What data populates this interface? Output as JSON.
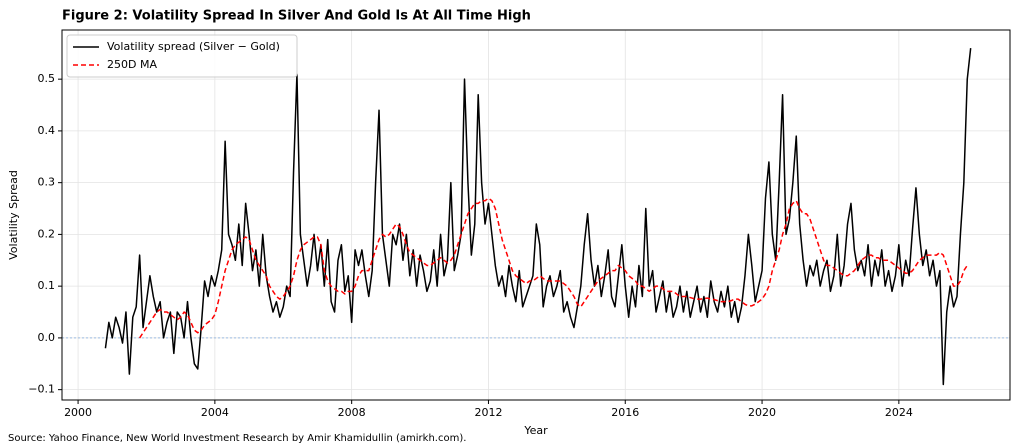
{
  "chart_data": {
    "type": "line",
    "title": "Figure 2: Volatility Spread In Silver And Gold Is At All Time High",
    "xlabel": "Year",
    "ylabel": "Volatility Spread",
    "source": "Source: Yahoo Finance, New World Investment Research by Amir Khamidullin (amirkh.com).",
    "x": [
      2000.8,
      2000.9,
      2001.0,
      2001.1,
      2001.2,
      2001.3,
      2001.4,
      2001.5,
      2001.6,
      2001.7,
      2001.8,
      2001.9,
      2002.0,
      2002.1,
      2002.2,
      2002.3,
      2002.4,
      2002.5,
      2002.6,
      2002.7,
      2002.8,
      2002.9,
      2003.0,
      2003.1,
      2003.2,
      2003.3,
      2003.4,
      2003.5,
      2003.6,
      2003.7,
      2003.8,
      2003.9,
      2004.0,
      2004.1,
      2004.2,
      2004.3,
      2004.4,
      2004.5,
      2004.6,
      2004.7,
      2004.8,
      2004.9,
      2005.0,
      2005.1,
      2005.2,
      2005.3,
      2005.4,
      2005.5,
      2005.6,
      2005.7,
      2005.8,
      2005.9,
      2006.0,
      2006.1,
      2006.2,
      2006.3,
      2006.4,
      2006.5,
      2006.6,
      2006.7,
      2006.8,
      2006.9,
      2007.0,
      2007.1,
      2007.2,
      2007.3,
      2007.4,
      2007.5,
      2007.6,
      2007.7,
      2007.8,
      2007.9,
      2008.0,
      2008.1,
      2008.2,
      2008.3,
      2008.4,
      2008.5,
      2008.6,
      2008.7,
      2008.8,
      2008.9,
      2009.0,
      2009.1,
      2009.2,
      2009.3,
      2009.4,
      2009.5,
      2009.6,
      2009.7,
      2009.8,
      2009.9,
      2010.0,
      2010.1,
      2010.2,
      2010.3,
      2010.4,
      2010.5,
      2010.6,
      2010.7,
      2010.8,
      2010.9,
      2011.0,
      2011.1,
      2011.2,
      2011.3,
      2011.4,
      2011.5,
      2011.6,
      2011.7,
      2011.8,
      2011.9,
      2012.0,
      2012.1,
      2012.2,
      2012.3,
      2012.4,
      2012.5,
      2012.6,
      2012.7,
      2012.8,
      2012.9,
      2013.0,
      2013.1,
      2013.2,
      2013.3,
      2013.4,
      2013.5,
      2013.6,
      2013.7,
      2013.8,
      2013.9,
      2014.0,
      2014.1,
      2014.2,
      2014.3,
      2014.4,
      2014.5,
      2014.6,
      2014.7,
      2014.8,
      2014.9,
      2015.0,
      2015.1,
      2015.2,
      2015.3,
      2015.4,
      2015.5,
      2015.6,
      2015.7,
      2015.8,
      2015.9,
      2016.0,
      2016.1,
      2016.2,
      2016.3,
      2016.4,
      2016.5,
      2016.6,
      2016.7,
      2016.8,
      2016.9,
      2017.0,
      2017.1,
      2017.2,
      2017.3,
      2017.4,
      2017.5,
      2017.6,
      2017.7,
      2017.8,
      2017.9,
      2018.0,
      2018.1,
      2018.2,
      2018.3,
      2018.4,
      2018.5,
      2018.6,
      2018.7,
      2018.8,
      2018.9,
      2019.0,
      2019.1,
      2019.2,
      2019.3,
      2019.4,
      2019.5,
      2019.6,
      2019.7,
      2019.8,
      2019.9,
      2020.0,
      2020.1,
      2020.2,
      2020.3,
      2020.4,
      2020.5,
      2020.6,
      2020.7,
      2020.8,
      2020.9,
      2021.0,
      2021.1,
      2021.2,
      2021.3,
      2021.4,
      2021.5,
      2021.6,
      2021.7,
      2021.8,
      2021.9,
      2022.0,
      2022.1,
      2022.2,
      2022.3,
      2022.4,
      2022.5,
      2022.6,
      2022.7,
      2022.8,
      2022.9,
      2023.0,
      2023.1,
      2023.2,
      2023.3,
      2023.4,
      2023.5,
      2023.6,
      2023.7,
      2023.8,
      2023.9,
      2024.0,
      2024.1,
      2024.2,
      2024.3,
      2024.4,
      2024.5,
      2024.6,
      2024.7,
      2024.8,
      2024.9,
      2025.0,
      2025.1,
      2025.2,
      2025.3,
      2025.4,
      2025.5,
      2025.6,
      2025.7,
      2025.8,
      2025.9,
      2026.0,
      2026.1
    ],
    "series": [
      {
        "name": "Volatility spread (Silver − Gold)",
        "color": "#000000",
        "dash": "solid",
        "values": [
          -0.02,
          0.03,
          0.0,
          0.04,
          0.02,
          -0.01,
          0.05,
          -0.07,
          0.04,
          0.06,
          0.16,
          0.02,
          0.07,
          0.12,
          0.08,
          0.05,
          0.07,
          0.0,
          0.03,
          0.05,
          -0.03,
          0.05,
          0.04,
          0.0,
          0.07,
          0.0,
          -0.05,
          -0.06,
          0.02,
          0.11,
          0.08,
          0.12,
          0.1,
          0.13,
          0.17,
          0.38,
          0.2,
          0.18,
          0.15,
          0.22,
          0.14,
          0.26,
          0.2,
          0.13,
          0.17,
          0.1,
          0.2,
          0.12,
          0.08,
          0.05,
          0.07,
          0.04,
          0.06,
          0.1,
          0.08,
          0.32,
          0.51,
          0.2,
          0.15,
          0.1,
          0.14,
          0.2,
          0.13,
          0.18,
          0.1,
          0.19,
          0.07,
          0.05,
          0.15,
          0.18,
          0.09,
          0.12,
          0.03,
          0.17,
          0.14,
          0.17,
          0.12,
          0.08,
          0.13,
          0.3,
          0.44,
          0.2,
          0.15,
          0.1,
          0.2,
          0.18,
          0.22,
          0.15,
          0.2,
          0.12,
          0.17,
          0.1,
          0.16,
          0.13,
          0.09,
          0.11,
          0.17,
          0.1,
          0.2,
          0.12,
          0.15,
          0.3,
          0.13,
          0.16,
          0.2,
          0.5,
          0.3,
          0.16,
          0.22,
          0.47,
          0.3,
          0.22,
          0.26,
          0.2,
          0.14,
          0.1,
          0.12,
          0.08,
          0.14,
          0.1,
          0.07,
          0.13,
          0.06,
          0.08,
          0.1,
          0.12,
          0.22,
          0.18,
          0.06,
          0.1,
          0.12,
          0.08,
          0.1,
          0.13,
          0.05,
          0.07,
          0.04,
          0.02,
          0.06,
          0.1,
          0.18,
          0.24,
          0.15,
          0.1,
          0.14,
          0.08,
          0.12,
          0.17,
          0.08,
          0.06,
          0.12,
          0.18,
          0.1,
          0.04,
          0.1,
          0.06,
          0.14,
          0.08,
          0.25,
          0.1,
          0.13,
          0.05,
          0.08,
          0.11,
          0.05,
          0.09,
          0.04,
          0.06,
          0.1,
          0.05,
          0.09,
          0.04,
          0.07,
          0.1,
          0.05,
          0.08,
          0.04,
          0.11,
          0.07,
          0.05,
          0.09,
          0.06,
          0.1,
          0.04,
          0.07,
          0.03,
          0.06,
          0.12,
          0.2,
          0.14,
          0.07,
          0.1,
          0.13,
          0.27,
          0.34,
          0.2,
          0.15,
          0.3,
          0.47,
          0.2,
          0.23,
          0.3,
          0.39,
          0.22,
          0.15,
          0.1,
          0.14,
          0.12,
          0.15,
          0.1,
          0.13,
          0.15,
          0.09,
          0.12,
          0.2,
          0.1,
          0.14,
          0.22,
          0.26,
          0.17,
          0.13,
          0.15,
          0.12,
          0.18,
          0.1,
          0.15,
          0.12,
          0.17,
          0.1,
          0.13,
          0.09,
          0.12,
          0.18,
          0.1,
          0.15,
          0.12,
          0.21,
          0.29,
          0.2,
          0.14,
          0.17,
          0.12,
          0.15,
          0.1,
          0.13,
          -0.09,
          0.05,
          0.1,
          0.06,
          0.08,
          0.2,
          0.3,
          0.5,
          0.56
        ]
      },
      {
        "name": "250D MA",
        "color": "#ff0000",
        "dash": "dashed",
        "values": [
          null,
          null,
          null,
          null,
          null,
          null,
          null,
          null,
          null,
          null,
          0.0,
          0.01,
          0.02,
          0.03,
          0.04,
          0.05,
          0.055,
          0.05,
          0.05,
          0.045,
          0.04,
          0.035,
          0.04,
          0.05,
          0.045,
          0.03,
          0.015,
          0.01,
          0.015,
          0.025,
          0.03,
          0.035,
          0.045,
          0.07,
          0.1,
          0.13,
          0.15,
          0.17,
          0.18,
          0.185,
          0.19,
          0.195,
          0.19,
          0.17,
          0.15,
          0.14,
          0.13,
          0.12,
          0.1,
          0.09,
          0.08,
          0.075,
          0.08,
          0.09,
          0.1,
          0.12,
          0.15,
          0.17,
          0.18,
          0.185,
          0.19,
          0.195,
          0.195,
          0.18,
          0.13,
          0.11,
          0.1,
          0.095,
          0.09,
          0.09,
          0.085,
          0.09,
          0.09,
          0.1,
          0.12,
          0.13,
          0.13,
          0.13,
          0.15,
          0.17,
          0.19,
          0.2,
          0.195,
          0.2,
          0.21,
          0.22,
          0.215,
          0.2,
          0.18,
          0.165,
          0.16,
          0.155,
          0.15,
          0.145,
          0.14,
          0.14,
          0.145,
          0.15,
          0.155,
          0.15,
          0.145,
          0.15,
          0.16,
          0.18,
          0.2,
          0.22,
          0.24,
          0.25,
          0.26,
          0.26,
          0.265,
          0.265,
          0.27,
          0.265,
          0.25,
          0.22,
          0.19,
          0.17,
          0.15,
          0.13,
          0.12,
          0.115,
          0.11,
          0.105,
          0.11,
          0.11,
          0.115,
          0.12,
          0.115,
          0.11,
          0.11,
          0.11,
          0.11,
          0.11,
          0.105,
          0.1,
          0.09,
          0.08,
          0.065,
          0.06,
          0.07,
          0.08,
          0.09,
          0.1,
          0.11,
          0.115,
          0.12,
          0.125,
          0.13,
          0.13,
          0.14,
          0.135,
          0.13,
          0.12,
          0.115,
          0.11,
          0.1,
          0.1,
          0.095,
          0.09,
          0.095,
          0.1,
          0.1,
          0.095,
          0.09,
          0.09,
          0.09,
          0.085,
          0.08,
          0.08,
          0.08,
          0.078,
          0.076,
          0.075,
          0.075,
          0.076,
          0.077,
          0.075,
          0.074,
          0.072,
          0.07,
          0.07,
          0.07,
          0.072,
          0.075,
          0.075,
          0.07,
          0.065,
          0.062,
          0.062,
          0.065,
          0.07,
          0.075,
          0.085,
          0.1,
          0.13,
          0.15,
          0.17,
          0.2,
          0.22,
          0.25,
          0.26,
          0.265,
          0.25,
          0.24,
          0.24,
          0.23,
          0.21,
          0.19,
          0.17,
          0.15,
          0.14,
          0.14,
          0.135,
          0.13,
          0.125,
          0.12,
          0.12,
          0.125,
          0.13,
          0.14,
          0.15,
          0.155,
          0.16,
          0.16,
          0.155,
          0.155,
          0.15,
          0.15,
          0.15,
          0.145,
          0.14,
          0.135,
          0.13,
          0.125,
          0.125,
          0.13,
          0.14,
          0.15,
          0.155,
          0.16,
          0.16,
          0.16,
          0.16,
          0.165,
          0.16,
          0.14,
          0.12,
          0.1,
          0.1,
          0.11,
          0.13,
          0.14,
          null
        ]
      }
    ],
    "reference_line": {
      "value": 0,
      "color": "#9bbbe0"
    },
    "xlim": [
      1999.53,
      2027.25
    ],
    "xticks": [
      2000,
      2004,
      2008,
      2012,
      2016,
      2020,
      2024
    ],
    "ylim": [
      -0.12,
      0.595
    ],
    "yticks": [
      {
        "value": -0.1,
        "label": "−0.1"
      },
      {
        "value": 0,
        "label": "0.0"
      },
      0.1,
      0.2,
      0.3,
      0.4,
      0.5
    ],
    "grid": true,
    "legend": "upper-left"
  }
}
